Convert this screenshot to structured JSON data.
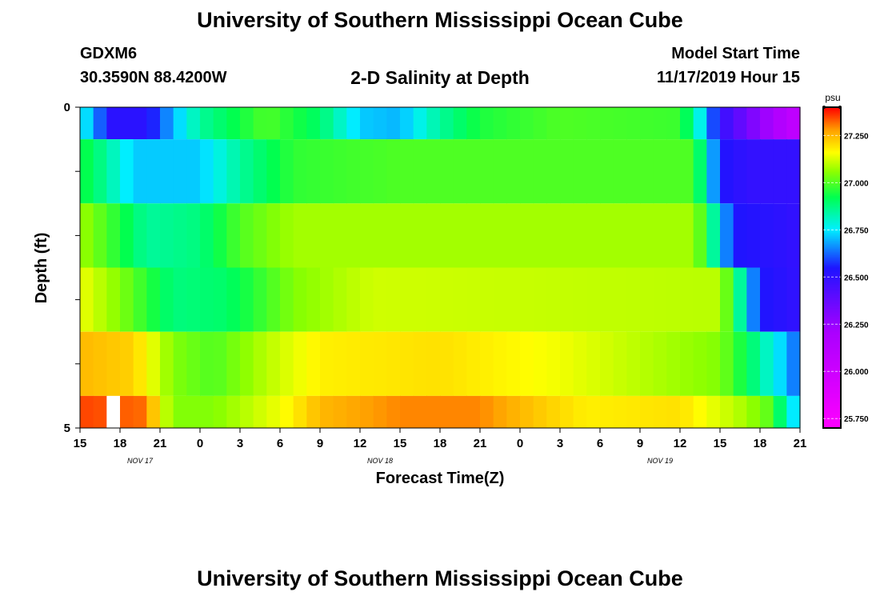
{
  "header": {
    "title": "University of Southern Mississippi Ocean Cube",
    "station": "GDXM6",
    "coordinates": "30.3590N 88.4200W",
    "plot_title": "2-D Salinity at Depth",
    "model_start_label": "Model Start Time",
    "model_start_value": "11/17/2019 Hour 15"
  },
  "footer": {
    "title": "University of Southern Mississippi Ocean Cube"
  },
  "chart_data": {
    "type": "heatmap",
    "title": "2-D Salinity at Depth",
    "xlabel": "Forecast Time(Z)",
    "ylabel": "Depth (ft)",
    "ylim": [
      0,
      5
    ],
    "y_tick_labels": [
      "0",
      "5"
    ],
    "x_tick_labels": [
      "15",
      "18",
      "21",
      "0",
      "3",
      "6",
      "9",
      "12",
      "15",
      "18",
      "21",
      "0",
      "3",
      "6",
      "9",
      "12",
      "15",
      "18",
      "21"
    ],
    "date_labels": [
      {
        "label": "NOV 17",
        "after_tick": 1
      },
      {
        "label": "NOV 18",
        "after_tick": 7
      },
      {
        "label": "NOV 19",
        "after_tick": 14
      }
    ],
    "colorbar": {
      "unit": "psu",
      "min": 25.7,
      "max": 27.4,
      "tick_values": [
        25.75,
        26.0,
        26.25,
        26.5,
        26.75,
        27.0,
        27.25
      ],
      "tick_labels": [
        "25.750",
        "26.000",
        "26.250",
        "26.500",
        "26.750",
        "27.000",
        "27.250"
      ]
    },
    "hours": 54,
    "rows": [
      {
        "depth_range": [
          0,
          0.5
        ],
        "keyframes": [
          [
            0,
            26.75
          ],
          [
            1,
            26.72
          ],
          [
            2,
            26.52
          ],
          [
            5,
            26.52
          ],
          [
            7,
            26.7
          ],
          [
            9,
            26.85
          ],
          [
            14,
            27.0
          ],
          [
            18,
            26.9
          ],
          [
            21,
            26.72
          ],
          [
            24,
            26.7
          ],
          [
            27,
            26.85
          ],
          [
            30,
            26.95
          ],
          [
            36,
            27.0
          ],
          [
            45,
            26.98
          ],
          [
            46,
            26.85
          ],
          [
            47,
            26.7
          ],
          [
            48,
            26.5
          ],
          [
            50,
            26.35
          ],
          [
            54,
            26.05
          ]
        ]
      },
      {
        "depth_range": [
          0.5,
          1.5
        ],
        "keyframes": [
          [
            0,
            26.95
          ],
          [
            2,
            26.85
          ],
          [
            4,
            26.72
          ],
          [
            9,
            26.72
          ],
          [
            12,
            26.85
          ],
          [
            16,
            26.97
          ],
          [
            24,
            27.0
          ],
          [
            46,
            27.0
          ],
          [
            47,
            26.8
          ],
          [
            48,
            26.55
          ],
          [
            50,
            26.5
          ],
          [
            54,
            26.5
          ]
        ]
      },
      {
        "depth_range": [
          1.5,
          2.5
        ],
        "keyframes": [
          [
            0,
            27.08
          ],
          [
            3,
            26.95
          ],
          [
            5,
            26.85
          ],
          [
            9,
            26.88
          ],
          [
            12,
            27.0
          ],
          [
            16,
            27.08
          ],
          [
            46,
            27.08
          ],
          [
            47,
            26.95
          ],
          [
            48,
            26.75
          ],
          [
            49,
            26.55
          ],
          [
            54,
            26.5
          ]
        ]
      },
      {
        "depth_range": [
          2.5,
          3.5
        ],
        "keyframes": [
          [
            0,
            27.15
          ],
          [
            3,
            27.05
          ],
          [
            7,
            26.88
          ],
          [
            11,
            26.9
          ],
          [
            16,
            27.05
          ],
          [
            22,
            27.12
          ],
          [
            48,
            27.1
          ],
          [
            49,
            26.95
          ],
          [
            50,
            26.75
          ],
          [
            51,
            26.55
          ],
          [
            54,
            26.5
          ]
        ]
      },
      {
        "depth_range": [
          3.5,
          4.5
        ],
        "keyframes": [
          [
            0,
            27.25
          ],
          [
            4,
            27.22
          ],
          [
            7,
            27.05
          ],
          [
            10,
            27.0
          ],
          [
            14,
            27.1
          ],
          [
            18,
            27.18
          ],
          [
            27,
            27.2
          ],
          [
            36,
            27.15
          ],
          [
            48,
            27.05
          ],
          [
            51,
            26.85
          ],
          [
            53,
            26.7
          ],
          [
            54,
            26.6
          ]
        ]
      },
      {
        "depth_range": [
          4.5,
          5
        ],
        "keyframes": [
          [
            0,
            27.35
          ],
          [
            5,
            27.32
          ],
          [
            6,
            27.15
          ],
          [
            7,
            27.05
          ],
          [
            10,
            27.05
          ],
          [
            15,
            27.15
          ],
          [
            18,
            27.25
          ],
          [
            24,
            27.3
          ],
          [
            30,
            27.3
          ],
          [
            33,
            27.25
          ],
          [
            38,
            27.18
          ],
          [
            45,
            27.2
          ],
          [
            50,
            27.08
          ],
          [
            52,
            27.0
          ],
          [
            53,
            26.8
          ],
          [
            54,
            26.7
          ]
        ]
      }
    ],
    "gap": {
      "row": 5,
      "hour": 2
    }
  }
}
